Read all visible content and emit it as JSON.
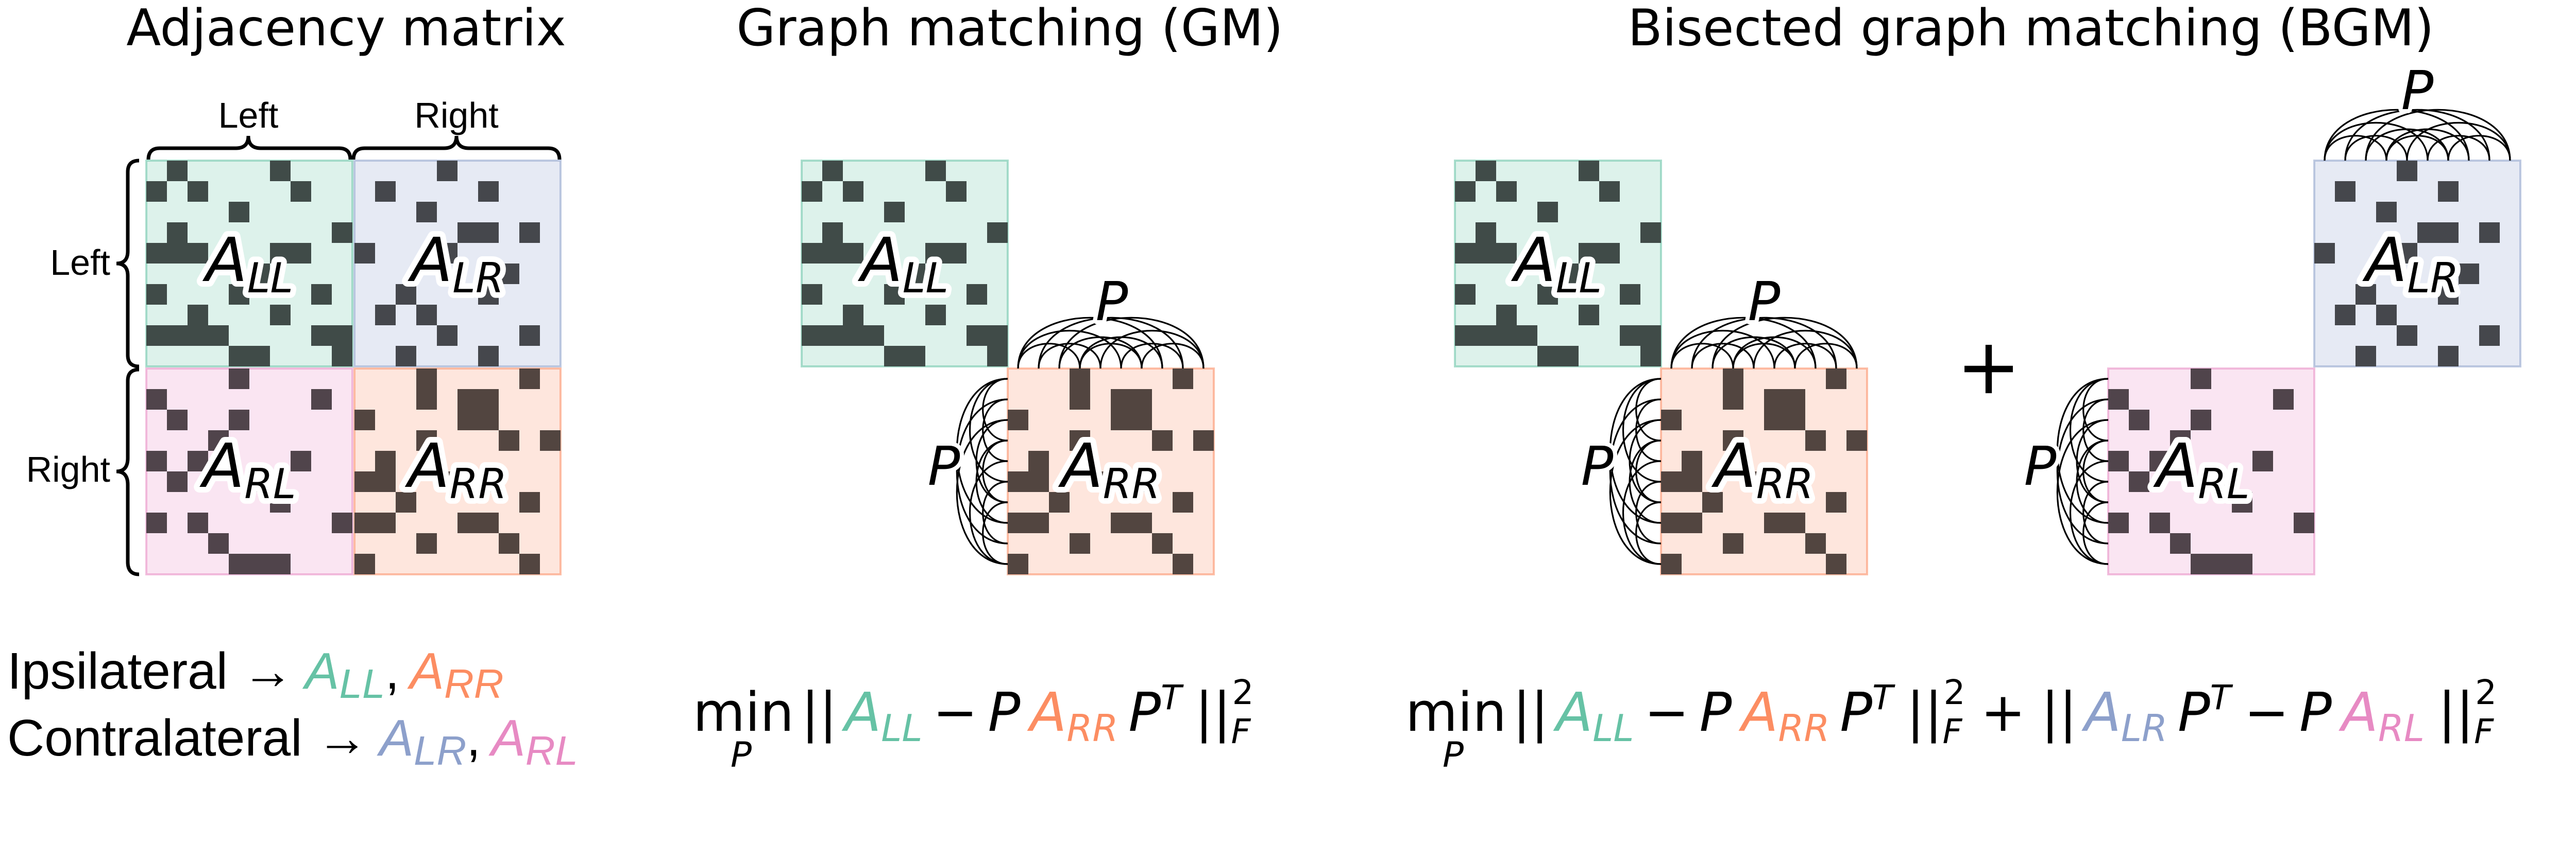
{
  "colors": {
    "LL": "#66c2a5",
    "LR": "#8da0cb",
    "RL": "#e78ac3",
    "RR": "#fc8d62",
    "cell": "#3b3b3b"
  },
  "panel_titles": {
    "adjacency": "Adjacency matrix",
    "gm": "Graph matching (GM)",
    "bgm": "Bisected graph matching (BGM)"
  },
  "axis_labels": {
    "col_left": "Left",
    "col_right": "Right",
    "row_left": "Left",
    "row_right": "Right"
  },
  "matrix_labels": {
    "base": "A",
    "LL": "LL",
    "LR": "LR",
    "RL": "RL",
    "RR": "RR"
  },
  "permutation_label": "P",
  "plus_sign": "+",
  "legend": {
    "ipsi_label": "Ipsilateral →",
    "contra_label": "Contralateral →",
    "comma": ","
  },
  "equations": {
    "min": "min",
    "min_sub": "P",
    "norm": "||",
    "minus": "−",
    "plus": "+",
    "P": "P",
    "T": "T",
    "F": "F",
    "two": "2"
  }
}
